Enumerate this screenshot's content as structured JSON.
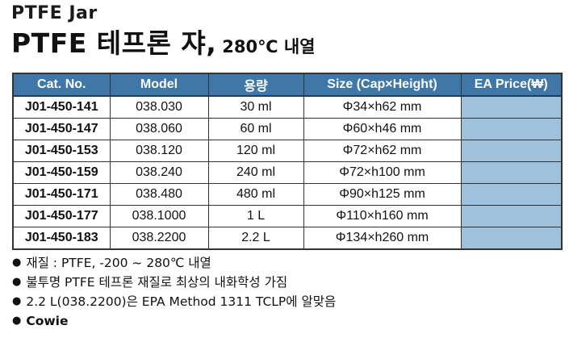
{
  "header": {
    "subtitle": "PTFE Jar",
    "title_main": "PTFE 테프론 쟈,",
    "title_suffix": "280℃ 내열"
  },
  "table": {
    "headers": [
      "Cat. No.",
      "Model",
      "용량",
      "Size (Cap×Height)",
      "EA  Price(₩)"
    ],
    "rows": [
      {
        "cat": "J01-450-141",
        "model": "038.030",
        "capacity": "30 ml",
        "size": "Φ34×h62 mm",
        "price": ""
      },
      {
        "cat": "J01-450-147",
        "model": "038.060",
        "capacity": "60 ml",
        "size": "Φ60×h46 mm",
        "price": ""
      },
      {
        "cat": "J01-450-153",
        "model": "038.120",
        "capacity": "120 ml",
        "size": "Φ72×h62 mm",
        "price": ""
      },
      {
        "cat": "J01-450-159",
        "model": "038.240",
        "capacity": "240 ml",
        "size": "Φ72×h100 mm",
        "price": ""
      },
      {
        "cat": "J01-450-171",
        "model": "038.480",
        "capacity": "480 ml",
        "size": "Φ90×h125 mm",
        "price": ""
      },
      {
        "cat": "J01-450-177",
        "model": "038.1000",
        "capacity": "1 L",
        "size": "Φ110×h160 mm",
        "price": ""
      },
      {
        "cat": "J01-450-183",
        "model": "038.2200",
        "capacity": "2.2 L",
        "size": "Φ134×h260 mm",
        "price": ""
      }
    ]
  },
  "notes": [
    {
      "bullet": "●",
      "text": "재질 : PTFE, -200 ~ 280℃ 내열",
      "bold": false
    },
    {
      "bullet": "●",
      "text": "불투명 PTFE 테프론 재질로 최상의 내화학성 가짐",
      "bold": false
    },
    {
      "bullet": "●",
      "text": "2.2 L(038.2200)은 EPA Method 1311 TCLP에 알맞음",
      "bold": false
    },
    {
      "bullet": "●",
      "text": "Cowie",
      "bold": true
    }
  ],
  "colors": {
    "header_bg": "#3f78a8",
    "price_cell_bg": "#9fc1dc"
  }
}
